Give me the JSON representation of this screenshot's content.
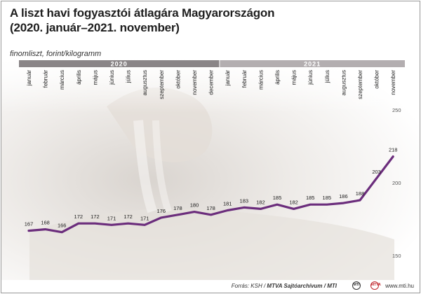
{
  "title_line1": "A liszt havi fogyasztói átlagára Magyarországon",
  "title_line2": "(2020. január–2021. november)",
  "subtitle": "finomliszt, forint/kilogramm",
  "footer": {
    "source_prefix": "Forrás: KSH / ",
    "source_bold": "MTVA Sajtóarchívum / MTI",
    "logo_a": "MTI",
    "logo_b": "MTVA",
    "site": "www.mti.hu"
  },
  "colors": {
    "line": "#6b2d7c",
    "year_band": "#8a8587",
    "year_band_2021": "#b3aeb0",
    "label_text": "#1a1a1a"
  },
  "chart_data": {
    "type": "line",
    "title": "A liszt havi fogyasztói átlagára Magyarországon",
    "subtitle": "finomliszt, forint/kilogramm",
    "years": [
      {
        "label": "2020",
        "months": 12
      },
      {
        "label": "2021",
        "months": 11
      }
    ],
    "categories": [
      "január",
      "február",
      "március",
      "április",
      "május",
      "június",
      "július",
      "augusztus",
      "szeptember",
      "október",
      "november",
      "december",
      "január",
      "február",
      "március",
      "április",
      "május",
      "június",
      "július",
      "augusztus",
      "szeptember",
      "október",
      "november"
    ],
    "values": [
      167,
      168,
      166,
      172,
      172,
      171,
      172,
      171,
      176,
      178,
      180,
      178,
      181,
      183,
      182,
      185,
      182,
      185,
      185,
      186,
      188,
      203,
      218
    ],
    "y_ticks": [
      150,
      200,
      250
    ],
    "ylim": [
      150,
      250
    ],
    "grid": false
  }
}
